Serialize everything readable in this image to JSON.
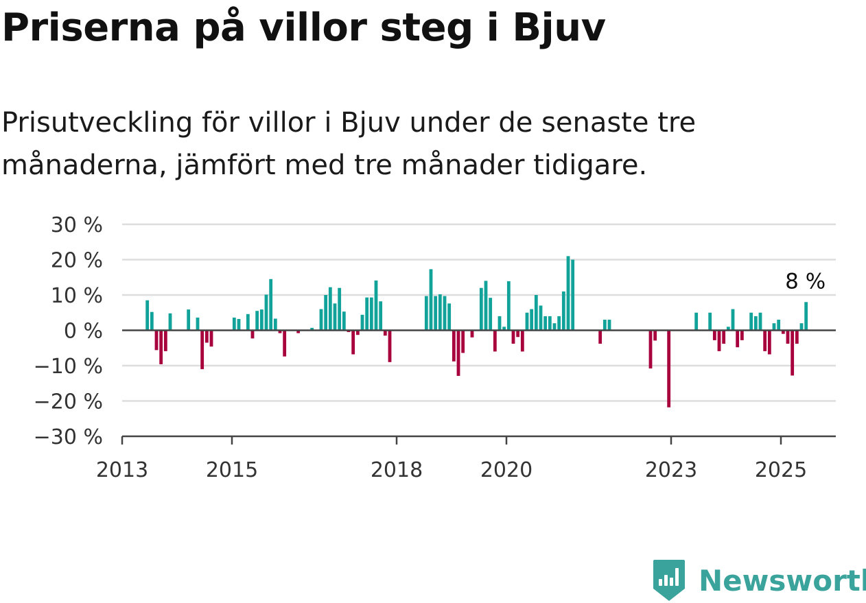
{
  "title": "Priserna på villor steg i Bjuv",
  "subtitle": "Prisutveckling för villor i Bjuv under de senaste tre månaderna, jämfört med tre månader tidigare.",
  "brand": {
    "name": "Newsworthy",
    "icon": "newsworthy-logo-icon",
    "color": "#3aa39b"
  },
  "colors": {
    "positive": "#11a39a",
    "negative": "#a8003c",
    "grid": "#dddddd",
    "axis": "#444444"
  },
  "chart_data": {
    "type": "bar",
    "title": "Priserna på villor steg i Bjuv",
    "subtitle": "Prisutveckling för villor i Bjuv under de senaste tre månaderna, jämfört med tre månader tidigare.",
    "ylim": [
      -30,
      30
    ],
    "y_ticks": [
      {
        "value": 30,
        "label": "30 %"
      },
      {
        "value": 20,
        "label": "20 %"
      },
      {
        "value": 10,
        "label": "10 %"
      },
      {
        "value": 0,
        "label": "0 %"
      },
      {
        "value": -10,
        "label": "−10 %"
      },
      {
        "value": -20,
        "label": "−20 %"
      },
      {
        "value": -30,
        "label": "−30 %"
      }
    ],
    "x_ticks": [
      {
        "value": "2013-01",
        "label": "2013"
      },
      {
        "value": "2015-01",
        "label": "2015"
      },
      {
        "value": "2018-01",
        "label": "2018"
      },
      {
        "value": "2020-01",
        "label": "2020"
      },
      {
        "value": "2023-01",
        "label": "2023"
      },
      {
        "value": "2025-01",
        "label": "2025"
      }
    ],
    "x_start": "2013-01",
    "x_end": "2026-01",
    "grid": true,
    "last_value_label": "8 %",
    "series": [
      {
        "points": [
          {
            "x": "2013-06",
            "y": 8.5
          },
          {
            "x": "2013-07",
            "y": 5.2
          },
          {
            "x": "2013-08",
            "y": -5.6
          },
          {
            "x": "2013-09",
            "y": -9.6
          },
          {
            "x": "2013-10",
            "y": -5.9
          },
          {
            "x": "2013-11",
            "y": 4.8
          },
          {
            "x": "2014-03",
            "y": 5.9
          },
          {
            "x": "2014-05",
            "y": 3.6
          },
          {
            "x": "2014-06",
            "y": -11.0
          },
          {
            "x": "2014-07",
            "y": -3.5
          },
          {
            "x": "2014-08",
            "y": -4.6
          },
          {
            "x": "2015-01",
            "y": 3.6
          },
          {
            "x": "2015-02",
            "y": 3.2
          },
          {
            "x": "2015-04",
            "y": 4.6
          },
          {
            "x": "2015-05",
            "y": -2.3
          },
          {
            "x": "2015-06",
            "y": 5.5
          },
          {
            "x": "2015-07",
            "y": 5.9
          },
          {
            "x": "2015-08",
            "y": 10.1
          },
          {
            "x": "2015-09",
            "y": 14.5
          },
          {
            "x": "2015-10",
            "y": 3.3
          },
          {
            "x": "2015-11",
            "y": -0.8
          },
          {
            "x": "2015-12",
            "y": -7.4
          },
          {
            "x": "2016-03",
            "y": -0.8
          },
          {
            "x": "2016-06",
            "y": 0.7
          },
          {
            "x": "2016-08",
            "y": 6.0
          },
          {
            "x": "2016-09",
            "y": 10.0
          },
          {
            "x": "2016-10",
            "y": 12.2
          },
          {
            "x": "2016-11",
            "y": 7.6
          },
          {
            "x": "2016-12",
            "y": 12.0
          },
          {
            "x": "2017-01",
            "y": 5.3
          },
          {
            "x": "2017-02",
            "y": -0.5
          },
          {
            "x": "2017-03",
            "y": -6.8
          },
          {
            "x": "2017-04",
            "y": -1.3
          },
          {
            "x": "2017-05",
            "y": 4.4
          },
          {
            "x": "2017-06",
            "y": 9.3
          },
          {
            "x": "2017-07",
            "y": 9.3
          },
          {
            "x": "2017-08",
            "y": 14.1
          },
          {
            "x": "2017-09",
            "y": 8.2
          },
          {
            "x": "2017-10",
            "y": -1.5
          },
          {
            "x": "2017-11",
            "y": -9.0
          },
          {
            "x": "2018-07",
            "y": 9.7
          },
          {
            "x": "2018-08",
            "y": 17.3
          },
          {
            "x": "2018-09",
            "y": 9.7
          },
          {
            "x": "2018-10",
            "y": 10.2
          },
          {
            "x": "2018-11",
            "y": 9.7
          },
          {
            "x": "2018-12",
            "y": 7.6
          },
          {
            "x": "2019-01",
            "y": -8.8
          },
          {
            "x": "2019-02",
            "y": -12.9
          },
          {
            "x": "2019-03",
            "y": -6.4
          },
          {
            "x": "2019-05",
            "y": -2.0
          },
          {
            "x": "2019-07",
            "y": 12.0
          },
          {
            "x": "2019-08",
            "y": 14.0
          },
          {
            "x": "2019-09",
            "y": 9.2
          },
          {
            "x": "2019-10",
            "y": -6.0
          },
          {
            "x": "2019-11",
            "y": 4.0
          },
          {
            "x": "2019-12",
            "y": 1.0
          },
          {
            "x": "2020-01",
            "y": 13.9
          },
          {
            "x": "2020-02",
            "y": -3.8
          },
          {
            "x": "2020-03",
            "y": -1.9
          },
          {
            "x": "2020-04",
            "y": -6.0
          },
          {
            "x": "2020-05",
            "y": 5.0
          },
          {
            "x": "2020-06",
            "y": 6.0
          },
          {
            "x": "2020-07",
            "y": 10.0
          },
          {
            "x": "2020-08",
            "y": 7.0
          },
          {
            "x": "2020-09",
            "y": 4.0
          },
          {
            "x": "2020-10",
            "y": 4.0
          },
          {
            "x": "2020-11",
            "y": 2.0
          },
          {
            "x": "2020-12",
            "y": 4.0
          },
          {
            "x": "2021-01",
            "y": 11.0
          },
          {
            "x": "2021-02",
            "y": 21.0
          },
          {
            "x": "2021-03",
            "y": 20.0
          },
          {
            "x": "2021-09",
            "y": -3.8
          },
          {
            "x": "2021-10",
            "y": 3.0
          },
          {
            "x": "2021-11",
            "y": 3.0
          },
          {
            "x": "2022-08",
            "y": -10.8
          },
          {
            "x": "2022-09",
            "y": -2.9
          },
          {
            "x": "2022-12",
            "y": -21.8
          },
          {
            "x": "2023-06",
            "y": 5.0
          },
          {
            "x": "2023-09",
            "y": 5.0
          },
          {
            "x": "2023-10",
            "y": -2.8
          },
          {
            "x": "2023-11",
            "y": -5.9
          },
          {
            "x": "2023-12",
            "y": -3.8
          },
          {
            "x": "2024-01",
            "y": 1.0
          },
          {
            "x": "2024-02",
            "y": 6.0
          },
          {
            "x": "2024-03",
            "y": -4.8
          },
          {
            "x": "2024-04",
            "y": -2.8
          },
          {
            "x": "2024-06",
            "y": 5.0
          },
          {
            "x": "2024-07",
            "y": 4.0
          },
          {
            "x": "2024-08",
            "y": 5.0
          },
          {
            "x": "2024-09",
            "y": -5.9
          },
          {
            "x": "2024-10",
            "y": -6.8
          },
          {
            "x": "2024-11",
            "y": 2.0
          },
          {
            "x": "2024-12",
            "y": 3.0
          },
          {
            "x": "2025-01",
            "y": -1.0
          },
          {
            "x": "2025-02",
            "y": -3.8
          },
          {
            "x": "2025-03",
            "y": -12.8
          },
          {
            "x": "2025-04",
            "y": -3.8
          },
          {
            "x": "2025-05",
            "y": 2.0
          },
          {
            "x": "2025-06",
            "y": 8.0
          }
        ]
      }
    ]
  }
}
